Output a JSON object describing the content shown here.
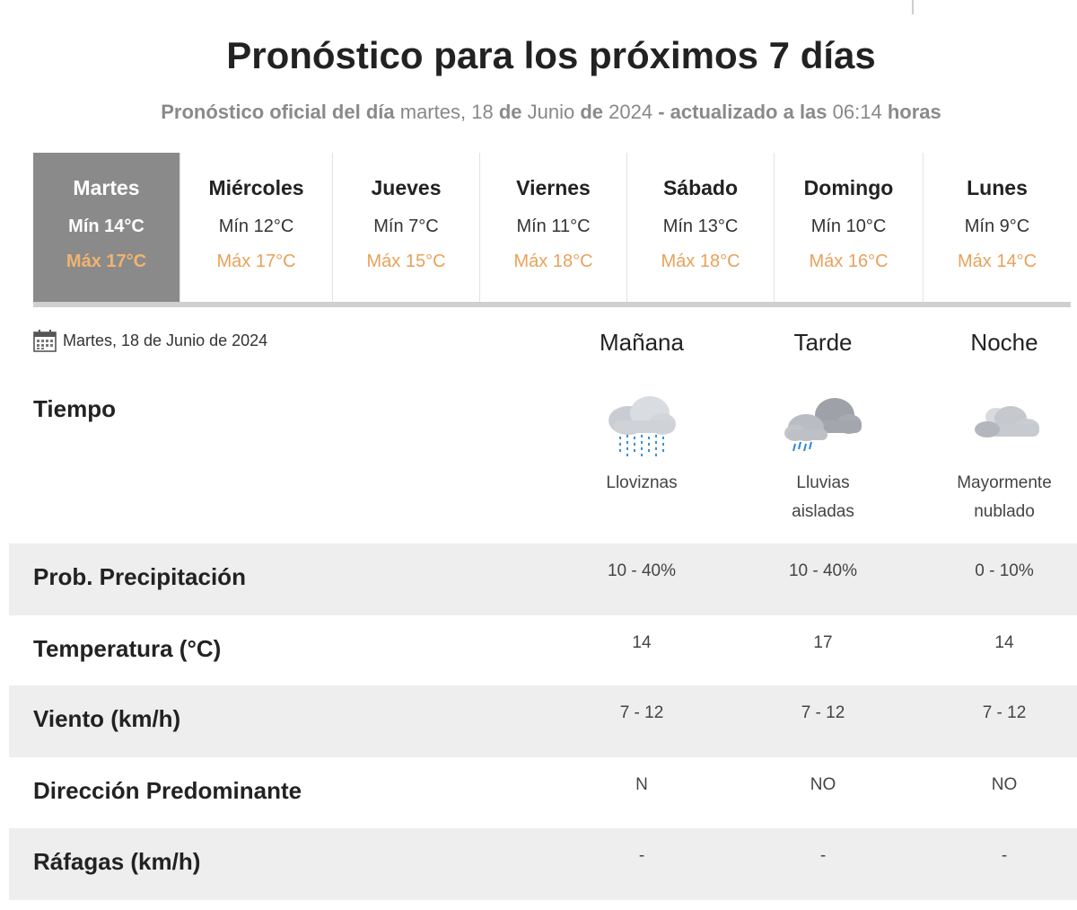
{
  "header": {
    "title": "Pronóstico para los próximos 7 días",
    "subtitle_prefix": "Pronóstico oficial del día",
    "subtitle_weekday": "martes, 18",
    "subtitle_de1": "de",
    "subtitle_month": "Junio",
    "subtitle_de2": "de",
    "subtitle_year": "2024",
    "subtitle_updated": "- actualizado a las",
    "subtitle_time": "06:14",
    "subtitle_hours": "horas"
  },
  "days": [
    {
      "name": "Martes",
      "min": "Mín 14°C",
      "max": "Máx 17°C"
    },
    {
      "name": "Miércoles",
      "min": "Mín 12°C",
      "max": "Máx 17°C"
    },
    {
      "name": "Jueves",
      "min": "Mín 7°C",
      "max": "Máx 15°C"
    },
    {
      "name": "Viernes",
      "min": "Mín 11°C",
      "max": "Máx 18°C"
    },
    {
      "name": "Sábado",
      "min": "Mín 13°C",
      "max": "Máx 18°C"
    },
    {
      "name": "Domingo",
      "min": "Mín 10°C",
      "max": "Máx 16°C"
    },
    {
      "name": "Lunes",
      "min": "Mín 9°C",
      "max": "Máx 14°C"
    }
  ],
  "detail": {
    "date": "Martes, 18 de Junio de 2024",
    "periods": [
      "Mañana",
      "Tarde",
      "Noche"
    ],
    "tiempo_label": "Tiempo",
    "weather": [
      {
        "icon": "drizzle-cloud-icon",
        "line1": "Lloviznas",
        "line2": ""
      },
      {
        "icon": "isolated-rain-cloud-icon",
        "line1": "Lluvias",
        "line2": "aisladas"
      },
      {
        "icon": "mostly-cloudy-night-icon",
        "line1": "Mayormente",
        "line2": "nublado"
      }
    ],
    "rows": [
      {
        "label": "Prob. Precipitación",
        "values": [
          "10 - 40%",
          "10 - 40%",
          "0 - 10%"
        ]
      },
      {
        "label": "Temperatura (°C)",
        "values": [
          "14",
          "17",
          "14"
        ]
      },
      {
        "label": "Viento (km/h)",
        "values": [
          "7 - 12",
          "7 - 12",
          "7 - 12"
        ]
      },
      {
        "label": "Dirección Predominante",
        "values": [
          "N",
          "NO",
          "NO"
        ]
      },
      {
        "label": "Ráfagas (km/h)",
        "values": [
          "-",
          "-",
          "-"
        ]
      }
    ]
  },
  "colors": {
    "active_tab": "#8a8a8a",
    "max_temp": "#e8a15a",
    "row_shade": "#eeeeee"
  }
}
